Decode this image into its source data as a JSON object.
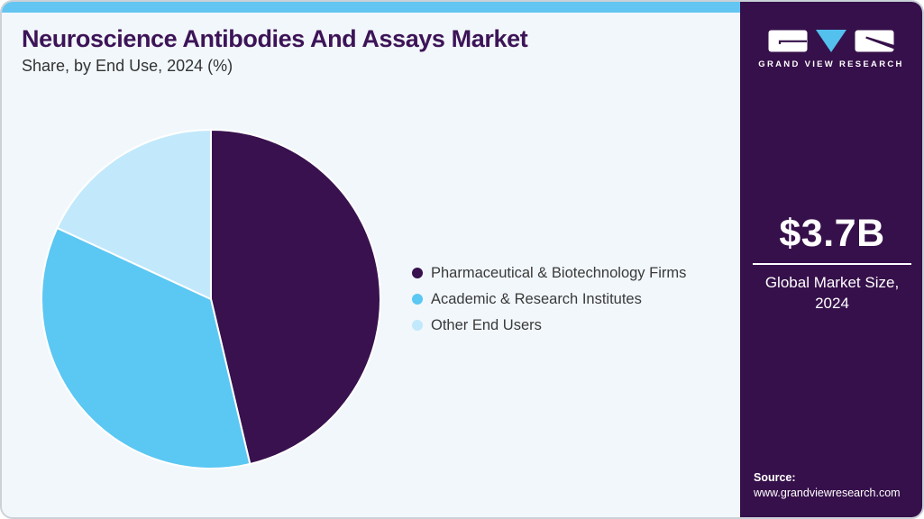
{
  "page": {
    "title": "Neuroscience Antibodies And Assays Market",
    "subtitle": "Share, by End Use, 2024 (%)"
  },
  "chart_data": {
    "type": "pie",
    "title": "Neuroscience Antibodies And Assays Market Share, by End Use, 2024 (%)",
    "categories": [
      "Pharmaceutical & Biotechnology Firms",
      "Academic & Research Institutes",
      "Other End Users"
    ],
    "values": [
      46.3,
      35.6,
      18.1
    ],
    "unit": "%",
    "colors": [
      "#38114e",
      "#5bc7f3",
      "#c2e8fb"
    ],
    "start_angle": "12 o'clock",
    "direction": "clockwise",
    "legend_position": "right",
    "slice_gap_color": "#ffffff"
  },
  "sidebar": {
    "brand": "GRAND VIEW RESEARCH",
    "market_size_value": "$3.7B",
    "market_size_label": "Global Market Size, 2024",
    "source_label": "Source:",
    "source_url": "www.grandviewresearch.com",
    "background_color": "#36104a",
    "logo_triangle_color": "#54c0ee"
  },
  "theme": {
    "top_strip_color": "#63c5f1",
    "main_background": "#f2f7fb",
    "title_color": "#3d1457",
    "subtitle_color": "#333333",
    "legend_text_color": "#3a3a3a",
    "card_border_color": "#cbd1d8"
  }
}
